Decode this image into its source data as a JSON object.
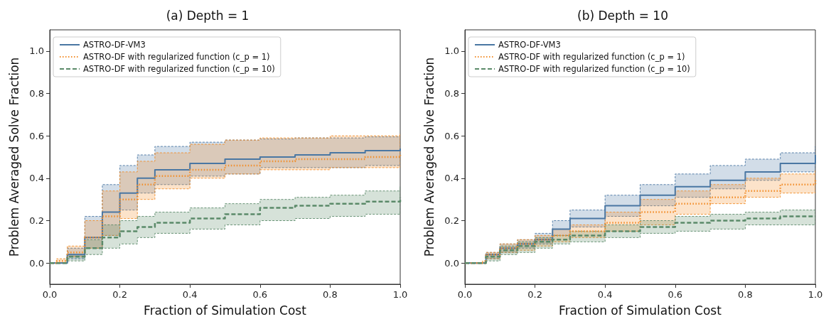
{
  "chart_data": [
    {
      "type": "step",
      "title": "(a) Depth = 1",
      "xlabel": "Fraction of Simulation Cost",
      "ylabel": "Problem Averaged Solve Fraction",
      "legend": "top left",
      "marker": "none",
      "grid": false,
      "xlim": [
        0,
        1
      ],
      "xticks": [
        {
          "value": 0,
          "label": "0.0"
        },
        {
          "value": 0.2,
          "label": "0.2"
        },
        {
          "value": 0.4,
          "label": "0.4"
        },
        {
          "value": 0.6,
          "label": "0.6"
        },
        {
          "value": 0.8,
          "label": "0.8"
        },
        {
          "value": 1,
          "label": "1.0"
        }
      ],
      "ylim": [
        -0.1,
        1.1
      ],
      "yticks": [
        {
          "value": 0,
          "label": "0.0"
        },
        {
          "value": 0.2,
          "label": "0.2"
        },
        {
          "value": 0.4,
          "label": "0.4"
        },
        {
          "value": 0.6,
          "label": "0.6"
        },
        {
          "value": 0.8,
          "label": "0.8"
        },
        {
          "value": 1,
          "label": "1.0"
        }
      ],
      "x": [
        0,
        0.02,
        0.05,
        0.1,
        0.15,
        0.2,
        0.25,
        0.3,
        0.4,
        0.5,
        0.6,
        0.7,
        0.8,
        0.9,
        1.0
      ],
      "series": [
        {
          "name": "ASTRO-DF-VM3",
          "color": "#4a77a3",
          "line_style": "solid",
          "values": [
            0,
            0,
            0.04,
            0.12,
            0.24,
            0.33,
            0.4,
            0.44,
            0.47,
            0.49,
            0.5,
            0.51,
            0.52,
            0.53,
            0.54
          ],
          "upper": [
            0,
            0,
            0.07,
            0.22,
            0.37,
            0.46,
            0.51,
            0.55,
            0.57,
            0.58,
            0.585,
            0.59,
            0.59,
            0.595,
            0.6
          ],
          "lower": [
            0,
            0,
            0.02,
            0.07,
            0.13,
            0.25,
            0.33,
            0.37,
            0.41,
            0.42,
            0.45,
            0.45,
            0.45,
            0.46,
            0.46
          ]
        },
        {
          "name": "ASTRO-DF with regularized function (c_p = 1)",
          "color": "#f28e2b",
          "line_style": "dotted",
          "values": [
            0,
            0.01,
            0.05,
            0.12,
            0.22,
            0.3,
            0.37,
            0.41,
            0.44,
            0.46,
            0.48,
            0.49,
            0.49,
            0.5,
            0.51
          ],
          "upper": [
            0,
            0.02,
            0.08,
            0.2,
            0.34,
            0.43,
            0.48,
            0.52,
            0.56,
            0.58,
            0.59,
            0.59,
            0.6,
            0.6,
            0.61
          ],
          "lower": [
            0,
            0,
            0.03,
            0.07,
            0.13,
            0.21,
            0.3,
            0.35,
            0.4,
            0.42,
            0.44,
            0.44,
            0.45,
            0.45,
            0.46
          ]
        },
        {
          "name": "ASTRO-DF with regularized function (c_p = 10)",
          "color": "#5b8a69",
          "line_style": "dashed",
          "values": [
            0,
            0,
            0.03,
            0.07,
            0.12,
            0.15,
            0.17,
            0.19,
            0.21,
            0.23,
            0.26,
            0.27,
            0.28,
            0.29,
            0.31
          ],
          "upper": [
            0,
            0,
            0.04,
            0.11,
            0.18,
            0.2,
            0.22,
            0.24,
            0.26,
            0.28,
            0.3,
            0.31,
            0.32,
            0.34,
            0.36
          ],
          "lower": [
            0,
            0,
            0.01,
            0.04,
            0.07,
            0.09,
            0.12,
            0.14,
            0.16,
            0.18,
            0.2,
            0.21,
            0.22,
            0.23,
            0.24
          ]
        }
      ]
    },
    {
      "type": "step",
      "title": "(b) Depth = 10",
      "xlabel": "Fraction of Simulation Cost",
      "ylabel": "Problem Averaged Solve Fraction",
      "legend": "top left",
      "marker": "none",
      "grid": false,
      "xlim": [
        0,
        1
      ],
      "xticks": [
        {
          "value": 0,
          "label": "0.0"
        },
        {
          "value": 0.2,
          "label": "0.2"
        },
        {
          "value": 0.4,
          "label": "0.4"
        },
        {
          "value": 0.6,
          "label": "0.6"
        },
        {
          "value": 0.8,
          "label": "0.8"
        },
        {
          "value": 1,
          "label": "1.0"
        }
      ],
      "ylim": [
        -0.1,
        1.1
      ],
      "yticks": [
        {
          "value": 0,
          "label": "0.0"
        },
        {
          "value": 0.2,
          "label": "0.2"
        },
        {
          "value": 0.4,
          "label": "0.4"
        },
        {
          "value": 0.6,
          "label": "0.6"
        },
        {
          "value": 0.8,
          "label": "0.8"
        },
        {
          "value": 1,
          "label": "1.0"
        }
      ],
      "x": [
        0,
        0.05,
        0.06,
        0.1,
        0.15,
        0.2,
        0.25,
        0.3,
        0.4,
        0.5,
        0.6,
        0.7,
        0.8,
        0.9,
        1.0
      ],
      "series": [
        {
          "name": "ASTRO-DF-VM3",
          "color": "#4a77a3",
          "line_style": "solid",
          "values": [
            0,
            0,
            0.04,
            0.07,
            0.09,
            0.11,
            0.16,
            0.21,
            0.27,
            0.32,
            0.36,
            0.39,
            0.43,
            0.47,
            0.51
          ],
          "upper": [
            0,
            0,
            0.05,
            0.09,
            0.11,
            0.14,
            0.2,
            0.25,
            0.32,
            0.37,
            0.42,
            0.46,
            0.49,
            0.52,
            0.55
          ],
          "lower": [
            0,
            0,
            0.02,
            0.05,
            0.07,
            0.09,
            0.13,
            0.17,
            0.22,
            0.27,
            0.31,
            0.35,
            0.39,
            0.43,
            0.47
          ]
        },
        {
          "name": "ASTRO-DF with regularized function (c_p = 1)",
          "color": "#f28e2b",
          "line_style": "dotted",
          "values": [
            0,
            0,
            0.04,
            0.07,
            0.09,
            0.11,
            0.13,
            0.15,
            0.19,
            0.24,
            0.28,
            0.31,
            0.34,
            0.37,
            0.39
          ],
          "upper": [
            0,
            0.01,
            0.05,
            0.09,
            0.11,
            0.13,
            0.16,
            0.18,
            0.24,
            0.3,
            0.34,
            0.37,
            0.4,
            0.42,
            0.44
          ],
          "lower": [
            0,
            0,
            0.02,
            0.05,
            0.06,
            0.08,
            0.1,
            0.12,
            0.15,
            0.18,
            0.23,
            0.28,
            0.31,
            0.33,
            0.34
          ]
        },
        {
          "name": "ASTRO-DF with regularized function (c_p = 10)",
          "color": "#5b8a69",
          "line_style": "dashed",
          "values": [
            0,
            0,
            0.03,
            0.06,
            0.08,
            0.1,
            0.11,
            0.13,
            0.15,
            0.17,
            0.19,
            0.2,
            0.21,
            0.22,
            0.22
          ],
          "upper": [
            0,
            0,
            0.04,
            0.08,
            0.1,
            0.12,
            0.13,
            0.15,
            0.18,
            0.2,
            0.22,
            0.23,
            0.24,
            0.25,
            0.25
          ],
          "lower": [
            0,
            0,
            0.01,
            0.04,
            0.05,
            0.07,
            0.09,
            0.1,
            0.12,
            0.14,
            0.15,
            0.16,
            0.18,
            0.18,
            0.19
          ]
        }
      ]
    }
  ]
}
